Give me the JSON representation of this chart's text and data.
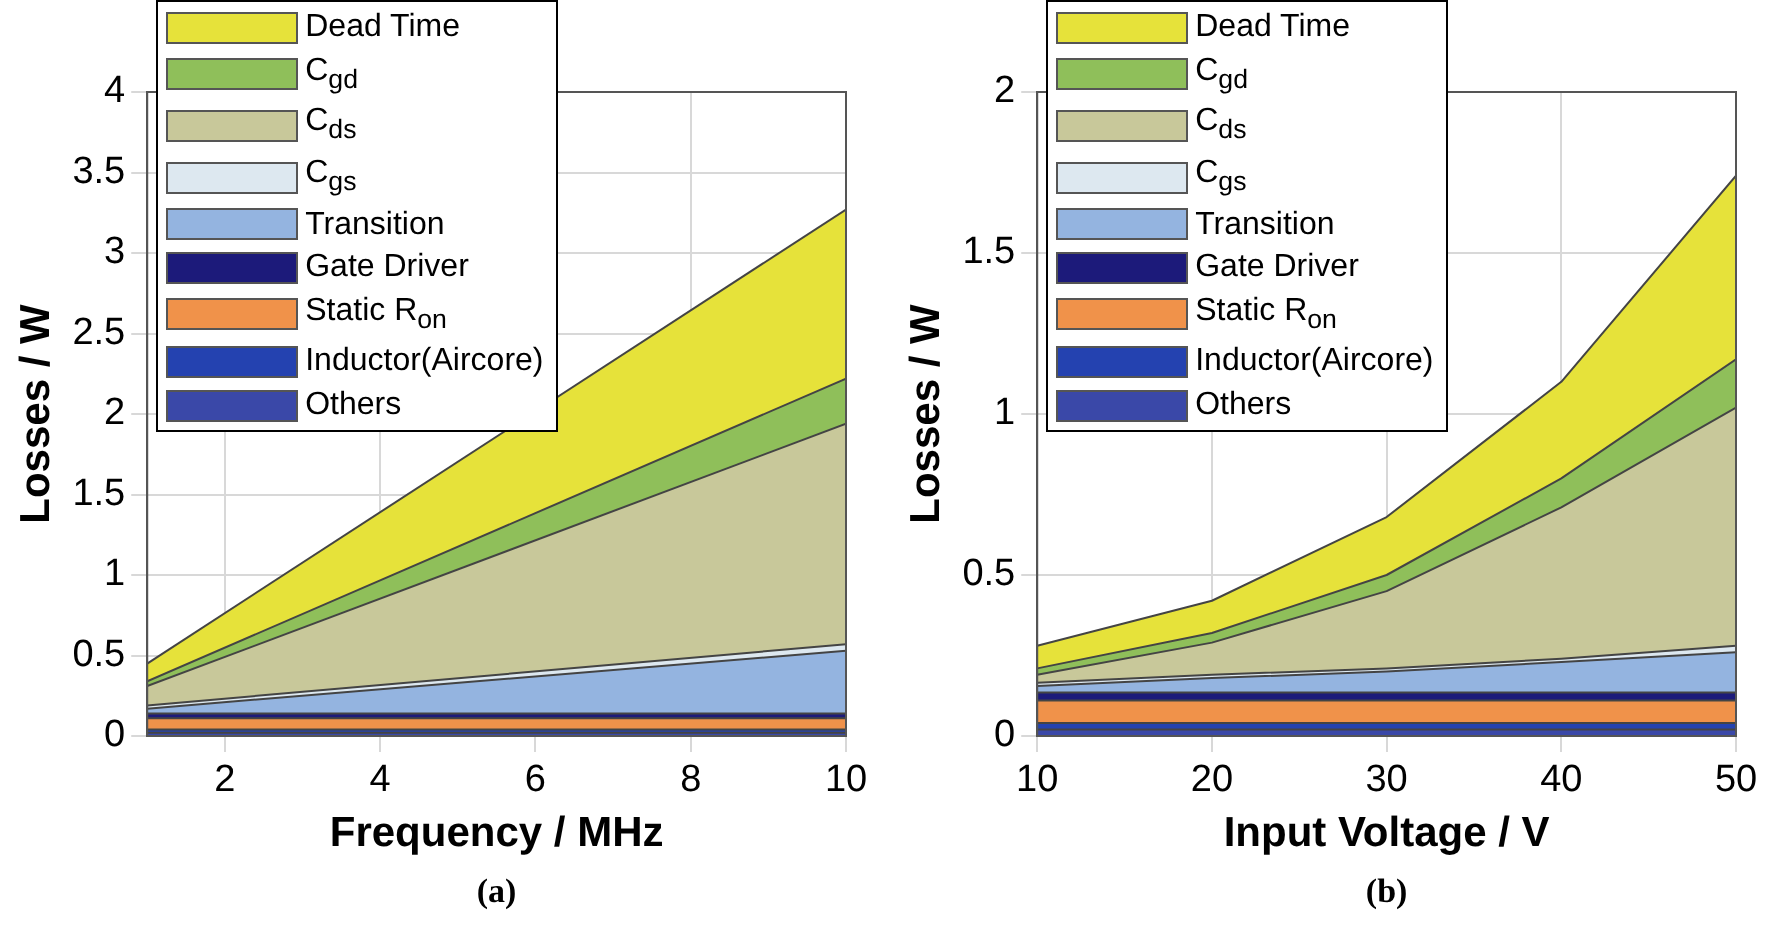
{
  "chart_data": [
    {
      "type": "area",
      "stacked": true,
      "xlabel": "Frequency / MHz",
      "ylabel": "Losses / W",
      "annotations": [
        "(a)"
      ],
      "grid": true,
      "legend": "top left",
      "x": [
        1,
        10
      ],
      "xlim": [
        1,
        10
      ],
      "xticks": [
        2,
        4,
        6,
        8,
        10
      ],
      "ylim": [
        0,
        4
      ],
      "yticks": [
        0,
        0.5,
        1,
        1.5,
        2,
        2.5,
        3,
        3.5,
        4
      ],
      "series": [
        {
          "name": "Others",
          "color": "#3a48a8",
          "values": [
            0.02,
            0.02
          ]
        },
        {
          "name": "Inductor(Aircore)",
          "color": "#2442b0",
          "values": [
            0.02,
            0.02
          ]
        },
        {
          "name": "Static R$_{on}$",
          "color": "#f0924a",
          "values": [
            0.07,
            0.07
          ]
        },
        {
          "name": "Gate Driver",
          "color": "#1c1a7a",
          "values": [
            0.03,
            0.03
          ]
        },
        {
          "name": "Transition",
          "color": "#94b4e0",
          "values": [
            0.03,
            0.39
          ]
        },
        {
          "name": "C$_{gs}$",
          "color": "#dde8f0",
          "values": [
            0.02,
            0.04
          ]
        },
        {
          "name": "C$_{ds}$",
          "color": "#c8c89a",
          "values": [
            0.12,
            1.37
          ]
        },
        {
          "name": "C$_{gd}$",
          "color": "#8fbf5a",
          "values": [
            0.03,
            0.28
          ]
        },
        {
          "name": "Dead Time",
          "color": "#e6e23a",
          "values": [
            0.11,
            1.05
          ]
        }
      ]
    },
    {
      "type": "area",
      "stacked": true,
      "xlabel": "Input Voltage / V",
      "ylabel": "Losses / W",
      "annotations": [
        "(b)"
      ],
      "grid": true,
      "legend": "top left",
      "x": [
        10,
        20,
        30,
        40,
        50
      ],
      "xlim": [
        10,
        50
      ],
      "xticks": [
        10,
        20,
        30,
        40,
        50
      ],
      "ylim": [
        0,
        2
      ],
      "yticks": [
        0,
        0.5,
        1,
        1.5,
        2
      ],
      "series": [
        {
          "name": "Others",
          "color": "#3a48a8",
          "values": [
            0.02,
            0.02,
            0.02,
            0.02,
            0.02
          ]
        },
        {
          "name": "Inductor(Aircore)",
          "color": "#2442b0",
          "values": [
            0.02,
            0.02,
            0.02,
            0.02,
            0.02
          ]
        },
        {
          "name": "Static R$_{on}$",
          "color": "#f0924a",
          "values": [
            0.07,
            0.07,
            0.07,
            0.07,
            0.07
          ]
        },
        {
          "name": "Gate Driver",
          "color": "#1c1a7a",
          "values": [
            0.025,
            0.025,
            0.025,
            0.025,
            0.025
          ]
        },
        {
          "name": "Transition",
          "color": "#94b4e0",
          "values": [
            0.02,
            0.045,
            0.065,
            0.095,
            0.125
          ]
        },
        {
          "name": "C$_{gs}$",
          "color": "#dde8f0",
          "values": [
            0.01,
            0.01,
            0.01,
            0.01,
            0.02
          ]
        },
        {
          "name": "C$_{ds}$",
          "color": "#c8c89a",
          "values": [
            0.025,
            0.1,
            0.24,
            0.47,
            0.74
          ]
        },
        {
          "name": "C$_{gd}$",
          "color": "#8fbf5a",
          "values": [
            0.02,
            0.03,
            0.05,
            0.09,
            0.15
          ]
        },
        {
          "name": "Dead Time",
          "color": "#e6e23a",
          "values": [
            0.07,
            0.1,
            0.18,
            0.3,
            0.57
          ]
        }
      ]
    }
  ]
}
